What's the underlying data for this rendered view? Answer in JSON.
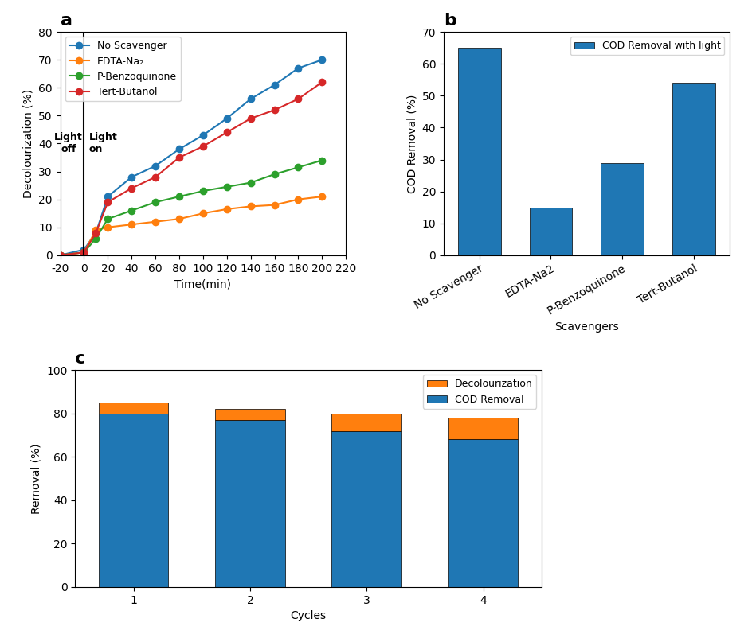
{
  "chart_data": [
    {
      "type": "line",
      "title": "a",
      "xlabel": "Time(min)",
      "ylabel": "Decolourization (%)",
      "x": [
        -20,
        0,
        10,
        20,
        40,
        60,
        80,
        100,
        120,
        140,
        160,
        180,
        200
      ],
      "series": [
        {
          "name": "No Scavenger",
          "values": [
            0,
            2,
            8,
            21,
            28,
            32,
            38,
            43,
            49,
            56,
            61,
            67,
            70
          ]
        },
        {
          "name": "EDTA-Na₂",
          "values": [
            0,
            1,
            9,
            10,
            11,
            12,
            13,
            15,
            16.5,
            17.5,
            18,
            20,
            21
          ]
        },
        {
          "name": "P-Benzoquinone",
          "values": [
            0,
            1,
            6,
            13,
            16,
            19,
            21,
            23,
            24.5,
            26,
            29,
            31.5,
            34
          ]
        },
        {
          "name": "Tert-Butanol",
          "values": [
            0,
            1,
            8,
            19,
            24,
            28,
            35,
            39,
            44,
            49,
            52,
            56,
            62
          ]
        }
      ],
      "marker": "o",
      "xlim": [
        -20,
        220
      ],
      "ylim": [
        0,
        80
      ],
      "xticks": [
        -20,
        0,
        20,
        40,
        60,
        80,
        100,
        120,
        140,
        160,
        180,
        200,
        220
      ],
      "yticks": [
        0,
        10,
        20,
        30,
        40,
        50,
        60,
        70,
        80
      ],
      "vlines": [
        0
      ],
      "annotations": [
        {
          "text": "Light\noff",
          "x": -13,
          "y": 40
        },
        {
          "text": "Light\non",
          "x": 4,
          "y": 40
        }
      ],
      "legend": "upper left"
    },
    {
      "type": "bar",
      "title": "b",
      "xlabel": "Scavengers",
      "ylabel": "COD Removal (%)",
      "categories": [
        "No Scavenger",
        "EDTA-Na2",
        "P-Benzoquinone",
        "Tert-Butanol"
      ],
      "series": [
        {
          "name": "COD Removal with light",
          "values": [
            65,
            15,
            29,
            54
          ]
        }
      ],
      "ylim": [
        0,
        70
      ],
      "yticks": [
        0,
        10,
        20,
        30,
        40,
        50,
        60,
        70
      ],
      "legend": "upper right"
    },
    {
      "type": "bar",
      "title": "c",
      "xlabel": "Cycles",
      "ylabel": "Removal (%)",
      "stacked": true,
      "categories": [
        "1",
        "2",
        "3",
        "4"
      ],
      "series": [
        {
          "name": "COD Removal",
          "values": [
            80,
            77,
            72,
            68
          ]
        },
        {
          "name": "Decolourization",
          "values": [
            5,
            5,
            8,
            10
          ]
        }
      ],
      "ylim": [
        0,
        100
      ],
      "yticks": [
        0,
        20,
        40,
        60,
        80,
        100
      ],
      "legend": "upper right"
    }
  ]
}
